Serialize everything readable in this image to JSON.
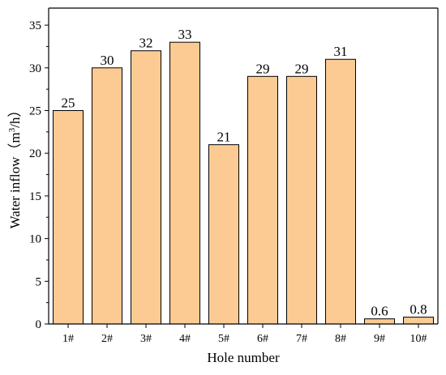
{
  "chart_data": {
    "type": "bar",
    "categories": [
      "1#",
      "2#",
      "3#",
      "4#",
      "5#",
      "6#",
      "7#",
      "8#",
      "9#",
      "10#"
    ],
    "values": [
      25,
      30,
      32,
      33,
      21,
      29,
      29,
      31,
      0.6,
      0.8
    ],
    "data_labels": [
      "25",
      "30",
      "32",
      "33",
      "21",
      "29",
      "29",
      "31",
      "0.6",
      "0.8"
    ],
    "title": "",
    "xlabel": "Hole number",
    "ylabel_main": "Water inflow（m",
    "ylabel_sup": "3",
    "ylabel_end": "/h）",
    "ylim": [
      0,
      37
    ],
    "yticks": [
      0,
      5,
      10,
      15,
      20,
      25,
      30,
      35
    ],
    "grid": false,
    "bar_fill": "#FCCB93",
    "bar_stroke": "#000000"
  }
}
